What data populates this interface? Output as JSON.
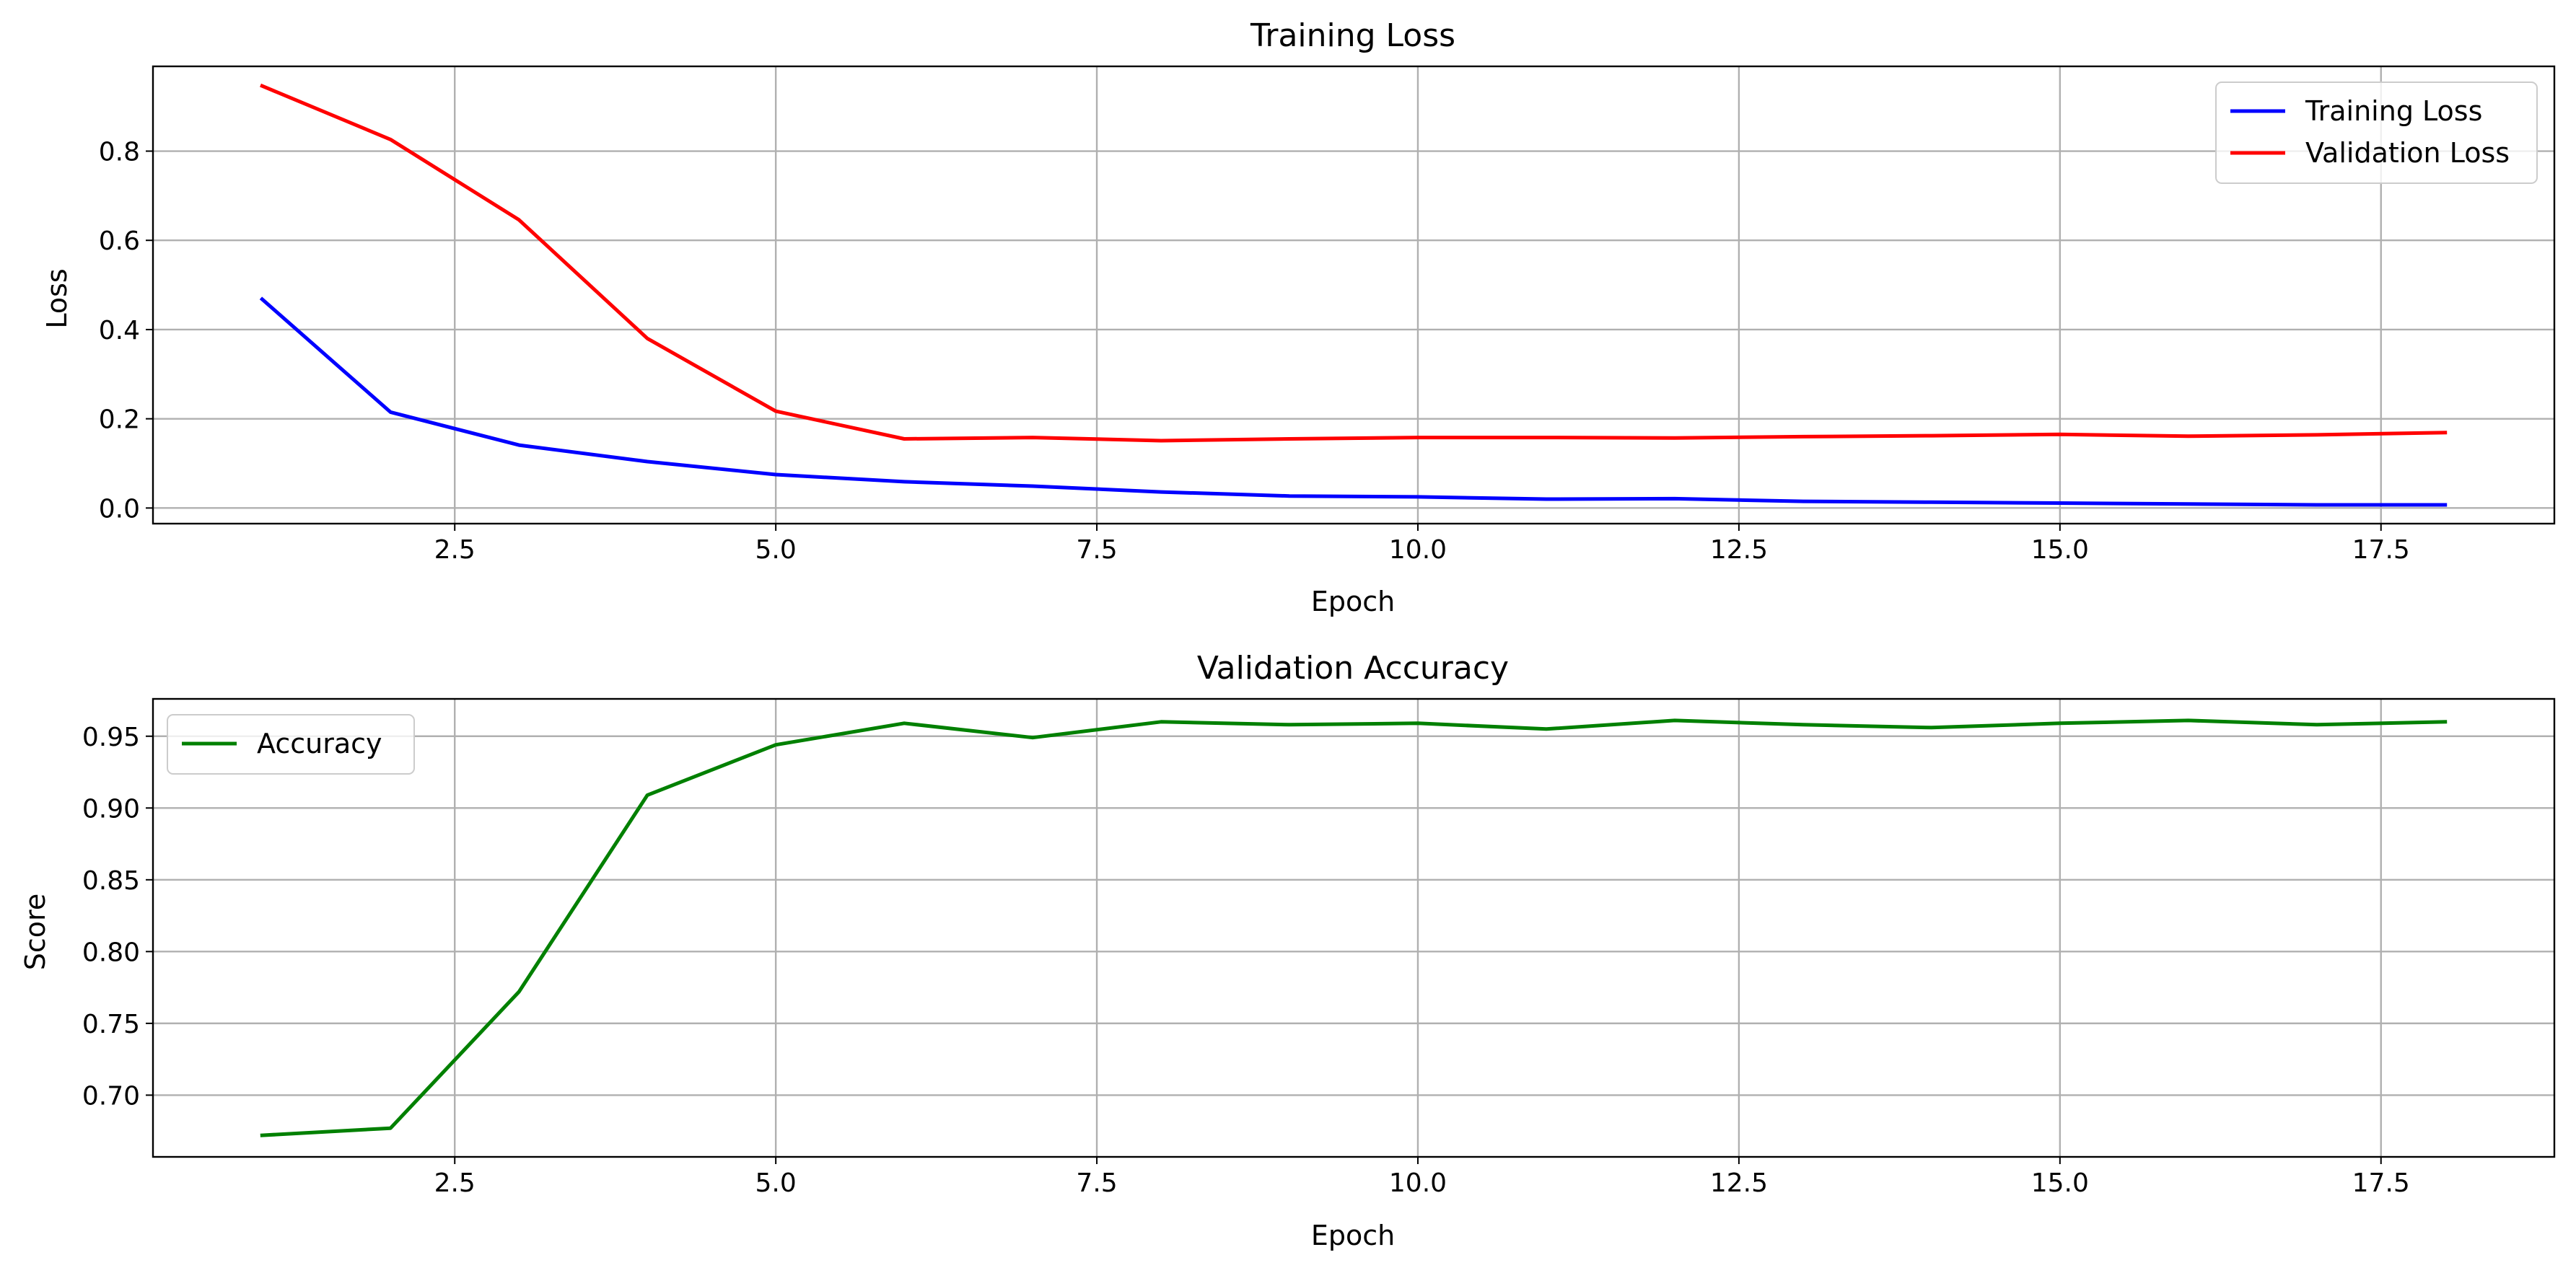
{
  "chart_data": [
    {
      "type": "line",
      "title": "Training Loss",
      "xlabel": "Epoch",
      "ylabel": "Loss",
      "x": [
        1,
        2,
        3,
        4,
        5,
        6,
        7,
        8,
        9,
        10,
        11,
        12,
        13,
        14,
        15,
        16,
        17,
        18
      ],
      "xlim": [
        0.15,
        18.85
      ],
      "ylim": [
        -0.035,
        0.99
      ],
      "xticks": [
        2.5,
        5.0,
        7.5,
        10.0,
        12.5,
        15.0,
        17.5
      ],
      "xtick_labels": [
        "2.5",
        "5.0",
        "7.5",
        "10.0",
        "12.5",
        "15.0",
        "17.5"
      ],
      "yticks": [
        0.0,
        0.2,
        0.4,
        0.6,
        0.8
      ],
      "ytick_labels": [
        "0.0",
        "0.2",
        "0.4",
        "0.6",
        "0.8"
      ],
      "grid": true,
      "legend_position": "top-right",
      "series": [
        {
          "name": "Training Loss",
          "color": "#0000ff",
          "values": [
            0.468,
            0.215,
            0.141,
            0.104,
            0.075,
            0.059,
            0.049,
            0.036,
            0.027,
            0.025,
            0.02,
            0.021,
            0.015,
            0.013,
            0.011,
            0.009,
            0.007,
            0.007
          ]
        },
        {
          "name": "Validation Loss",
          "color": "#ff0000",
          "values": [
            0.946,
            0.826,
            0.646,
            0.38,
            0.217,
            0.155,
            0.158,
            0.151,
            0.155,
            0.158,
            0.158,
            0.157,
            0.16,
            0.162,
            0.165,
            0.161,
            0.164,
            0.169
          ]
        }
      ]
    },
    {
      "type": "line",
      "title": "Validation Accuracy",
      "xlabel": "Epoch",
      "ylabel": "Score",
      "x": [
        1,
        2,
        3,
        4,
        5,
        6,
        7,
        8,
        9,
        10,
        11,
        12,
        13,
        14,
        15,
        16,
        17,
        18
      ],
      "xlim": [
        0.15,
        18.85
      ],
      "ylim": [
        0.657,
        0.976
      ],
      "xticks": [
        2.5,
        5.0,
        7.5,
        10.0,
        12.5,
        15.0,
        17.5
      ],
      "xtick_labels": [
        "2.5",
        "5.0",
        "7.5",
        "10.0",
        "12.5",
        "15.0",
        "17.5"
      ],
      "yticks": [
        0.7,
        0.75,
        0.8,
        0.85,
        0.9,
        0.95
      ],
      "ytick_labels": [
        "0.70",
        "0.75",
        "0.80",
        "0.85",
        "0.90",
        "0.95"
      ],
      "grid": true,
      "legend_position": "top-left",
      "series": [
        {
          "name": "Accuracy",
          "color": "#008000",
          "values": [
            0.672,
            0.677,
            0.772,
            0.909,
            0.944,
            0.959,
            0.949,
            0.96,
            0.958,
            0.959,
            0.955,
            0.961,
            0.958,
            0.956,
            0.959,
            0.961,
            0.958,
            0.96
          ]
        }
      ]
    }
  ]
}
